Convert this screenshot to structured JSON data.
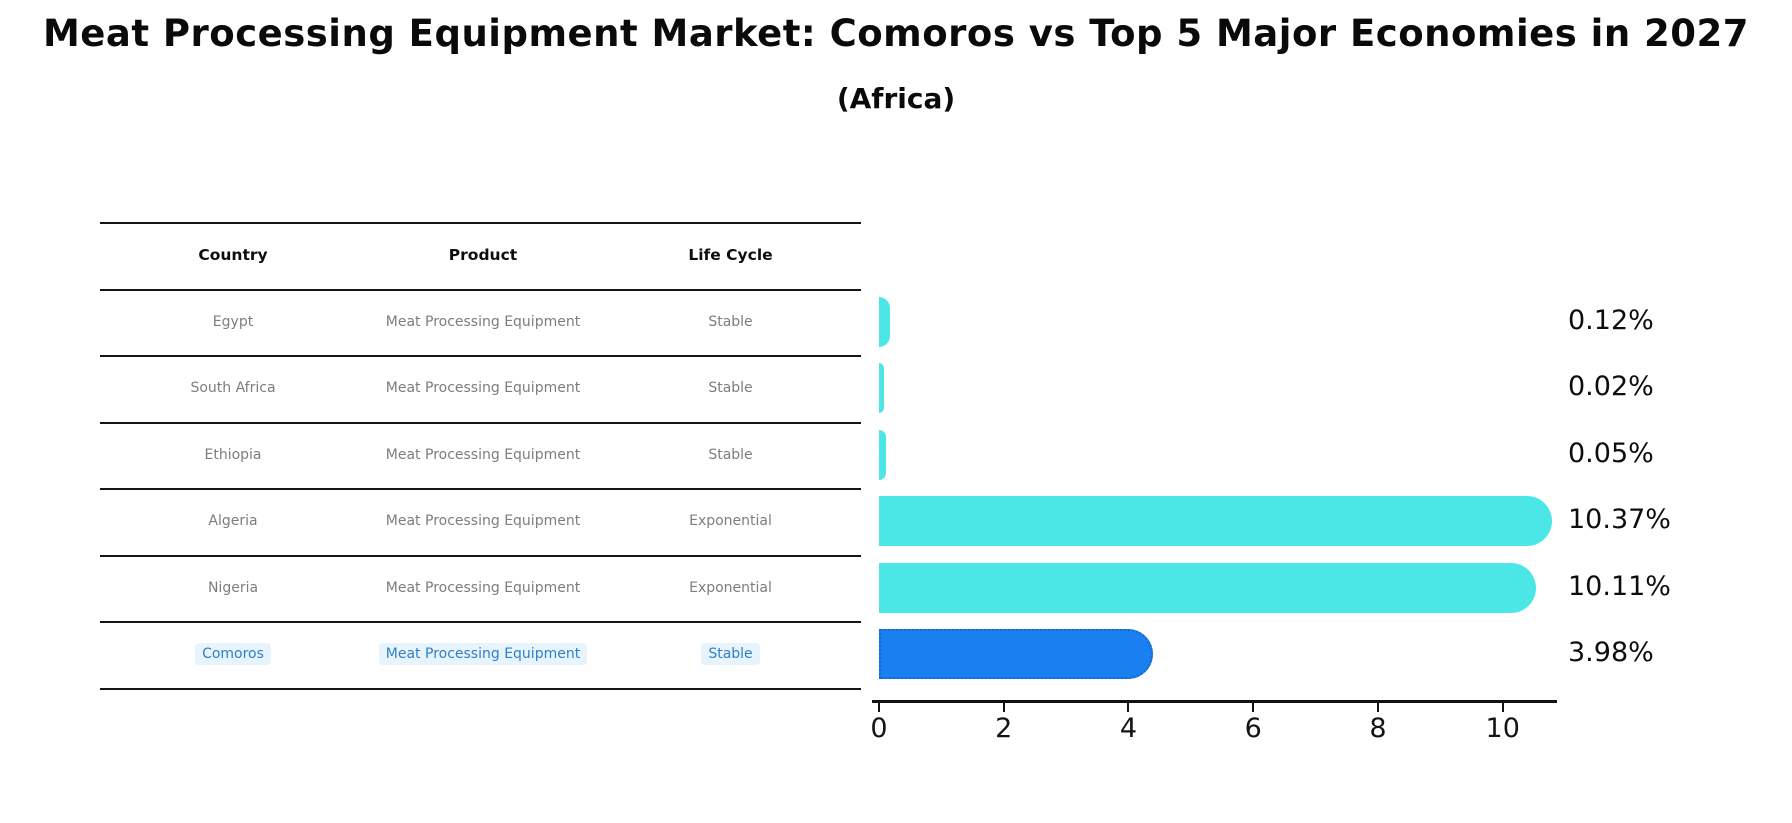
{
  "title": "Meat Processing Equipment Market: Comoros vs Top 5 Major Economies in 2027",
  "subtitle": "(Africa)",
  "table": {
    "headers": [
      "Country",
      "Product",
      "Life Cycle"
    ],
    "rows": [
      {
        "country": "Egypt",
        "product": "Meat Processing Equipment",
        "life_cycle": "Stable",
        "highlight": false
      },
      {
        "country": "South Africa",
        "product": "Meat Processing Equipment",
        "life_cycle": "Stable",
        "highlight": false
      },
      {
        "country": "Ethiopia",
        "product": "Meat Processing Equipment",
        "life_cycle": "Stable",
        "highlight": false
      },
      {
        "country": "Algeria",
        "product": "Meat Processing Equipment",
        "life_cycle": "Exponential",
        "highlight": false
      },
      {
        "country": "Nigeria",
        "product": "Meat Processing Equipment",
        "life_cycle": "Exponential",
        "highlight": false
      },
      {
        "country": "Comoros",
        "product": "Meat Processing Equipment",
        "life_cycle": "Stable",
        "highlight": true
      }
    ]
  },
  "chart_data": {
    "type": "bar",
    "orientation": "horizontal",
    "title": "Meat Processing Equipment Market: Comoros vs Top 5 Major Economies in 2027 (Africa)",
    "categories": [
      "Egypt",
      "South Africa",
      "Ethiopia",
      "Algeria",
      "Nigeria",
      "Comoros"
    ],
    "values": [
      0.12,
      0.02,
      0.05,
      10.37,
      10.11,
      3.98
    ],
    "value_labels": [
      "0.12%",
      "0.02%",
      "0.05%",
      "10.37%",
      "10.11%",
      "3.98%"
    ],
    "highlight_index": 5,
    "xticks": [
      0,
      2,
      4,
      6,
      8,
      10
    ],
    "xtick_labels": [
      "0",
      "2",
      "4",
      "6",
      "8",
      "10"
    ],
    "xlim": [
      0,
      10.87
    ],
    "grid": false,
    "legend": false,
    "unit": "%"
  },
  "colors": {
    "background": "#ffffff",
    "bar_default": "#4be6e6",
    "bar_highlight": "#1b80ef",
    "bar_highlight_border": "#1266d6",
    "highlight_text": "#2e7fc6",
    "row_text": "#7d7d7d",
    "header_text": "#0d0d0d",
    "axis_text": "#141414",
    "line": "#151515"
  }
}
